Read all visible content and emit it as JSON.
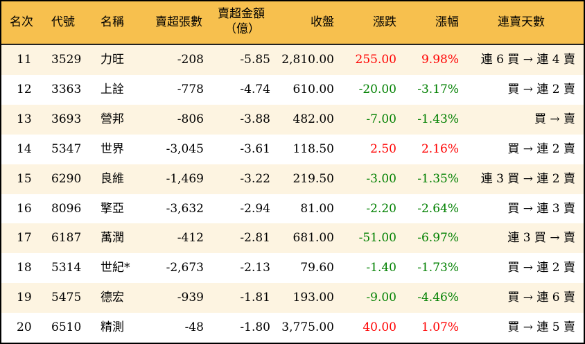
{
  "colors": {
    "header_bg": "#f7c04e",
    "row_alt_bg": "#fdf4e1",
    "up": "#ff0000",
    "down": "#008000"
  },
  "headers": [
    "名次",
    "代號",
    "名稱",
    "賣超張數",
    "賣超金額",
    "（億）",
    "收盤",
    "漲跌",
    "漲幅",
    "連賣天數"
  ],
  "rows": [
    [
      "11",
      "3529",
      "力旺",
      "-208",
      "-5.85",
      "2,810.00",
      "255.00",
      "9.98%",
      "連 6 買 → 連 4 賣",
      "up"
    ],
    [
      "12",
      "3363",
      "上詮",
      "-778",
      "-4.74",
      "610.00",
      "-20.00",
      "-3.17%",
      "買 → 連 2 賣",
      "down"
    ],
    [
      "13",
      "3693",
      "營邦",
      "-806",
      "-3.88",
      "482.00",
      "-7.00",
      "-1.43%",
      "買 → 賣",
      "down"
    ],
    [
      "14",
      "5347",
      "世界",
      "-3,045",
      "-3.61",
      "118.50",
      "2.50",
      "2.16%",
      "買 → 連 2 賣",
      "up"
    ],
    [
      "15",
      "6290",
      "良維",
      "-1,469",
      "-3.22",
      "219.50",
      "-3.00",
      "-1.35%",
      "連 3 買 → 連 2 賣",
      "down"
    ],
    [
      "16",
      "8096",
      "擎亞",
      "-3,632",
      "-2.94",
      "81.00",
      "-2.20",
      "-2.64%",
      "買 → 連 3 賣",
      "down"
    ],
    [
      "17",
      "6187",
      "萬潤",
      "-412",
      "-2.81",
      "681.00",
      "-51.00",
      "-6.97%",
      "連 3 買 → 賣",
      "down"
    ],
    [
      "18",
      "5314",
      "世紀*",
      "-2,673",
      "-2.13",
      "79.60",
      "-1.40",
      "-1.73%",
      "買 → 連 2 賣",
      "down"
    ],
    [
      "19",
      "5475",
      "德宏",
      "-939",
      "-1.81",
      "193.00",
      "-9.00",
      "-4.46%",
      "買 → 連 6 賣",
      "down"
    ],
    [
      "20",
      "6510",
      "精測",
      "-48",
      "-1.80",
      "3,775.00",
      "40.00",
      "1.07%",
      "買 → 連 5 賣",
      "up"
    ]
  ]
}
